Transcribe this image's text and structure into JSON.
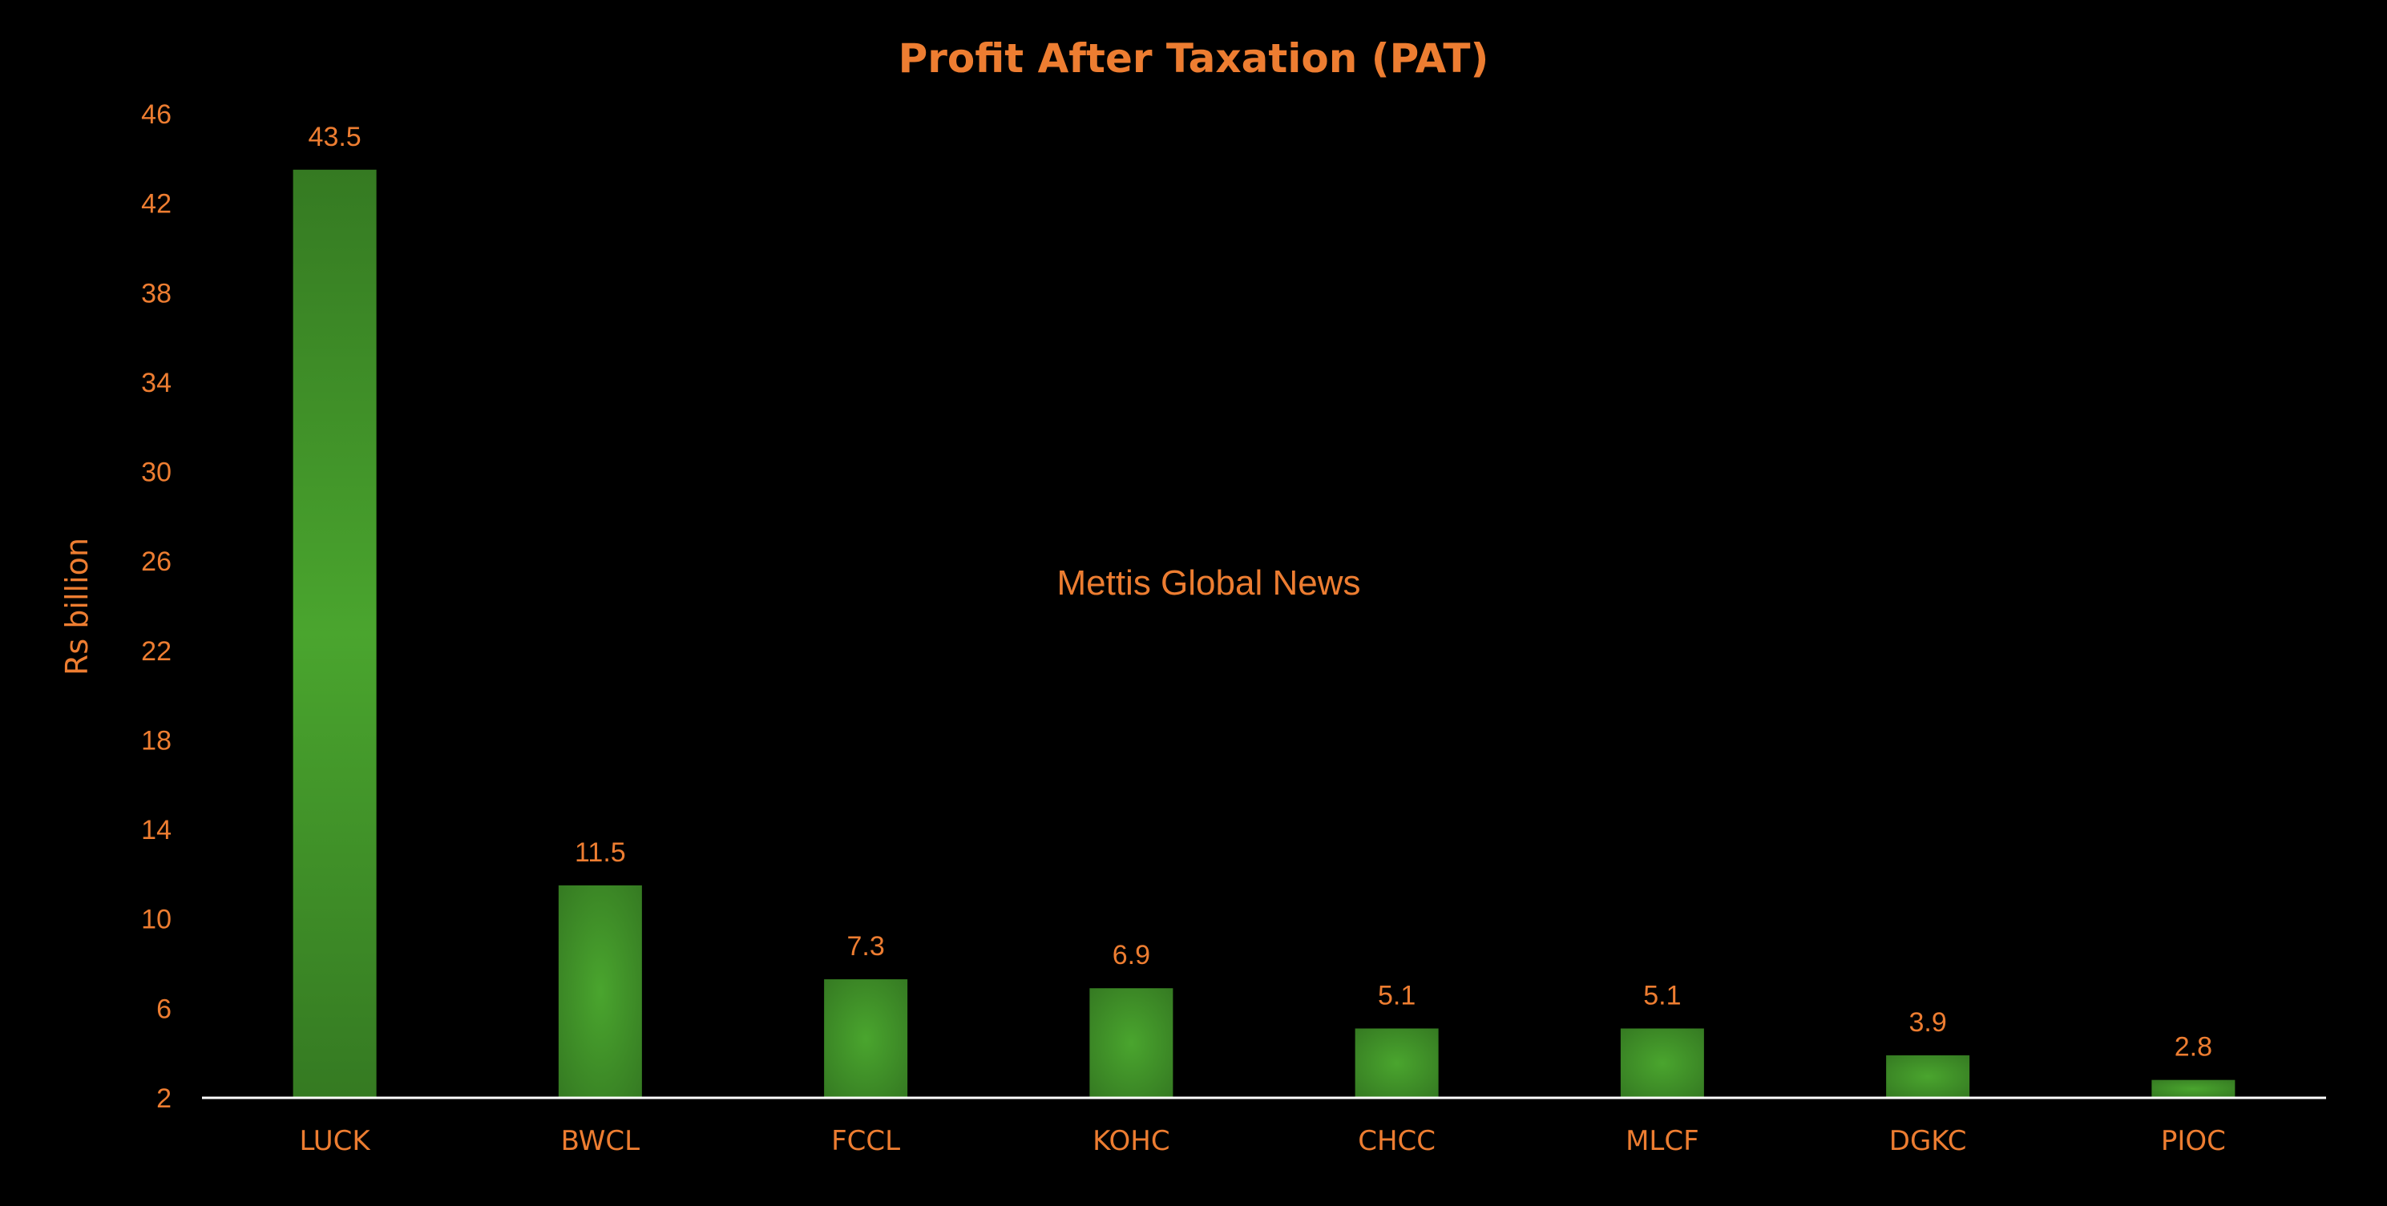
{
  "chart_data": {
    "type": "bar",
    "title": "Profit After Taxation (PAT)",
    "ylabel": "Rs billion",
    "xlabel": "",
    "categories": [
      "LUCK",
      "BWCL",
      "FCCL",
      "KOHC",
      "CHCC",
      "MLCF",
      "DGKC",
      "PIOC"
    ],
    "values": [
      43.5,
      11.5,
      7.3,
      6.9,
      5.1,
      5.1,
      3.9,
      2.8
    ],
    "data_labels": [
      "43.5",
      "11.5",
      "7.3",
      "6.9",
      "5.1",
      "5.1",
      "3.9",
      "2.8"
    ],
    "ylim": [
      2,
      46
    ],
    "yticks": [
      2,
      6,
      10,
      14,
      18,
      22,
      26,
      30,
      34,
      38,
      42,
      46
    ],
    "grid": false,
    "legend": "none"
  },
  "watermark": "Mettis Global News",
  "colors": {
    "background": "#000000",
    "text": "#ED7D31",
    "bar_center": "#4AA52E",
    "bar_edge": "#357A22",
    "axis": "#FFFFFF"
  }
}
